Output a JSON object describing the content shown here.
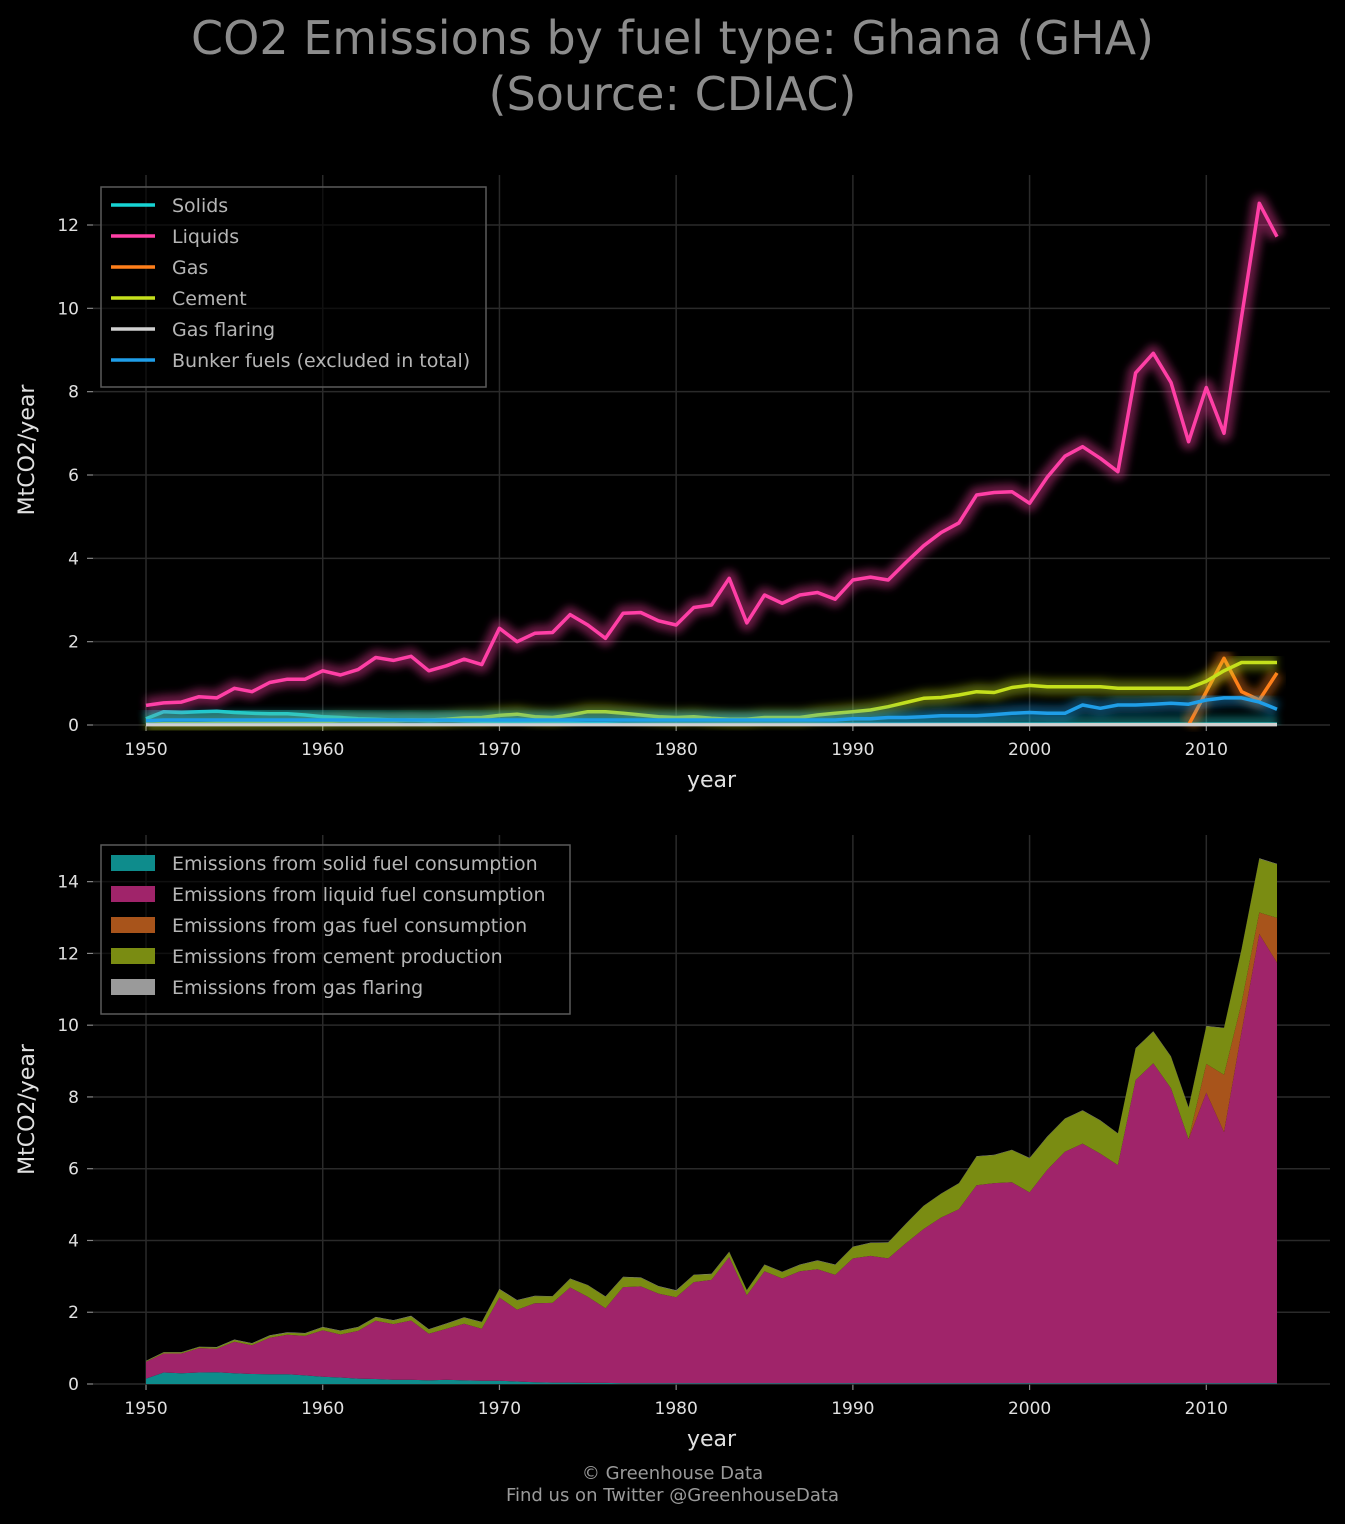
{
  "title_line1": "CO2 Emissions by fuel type: Ghana (GHA)",
  "title_line2": "(Source: CDIAC)",
  "footer_line1": "© Greenhouse Data",
  "footer_line2": "Find us on Twitter @GreenhouseData",
  "colors": {
    "background": "#000000",
    "grid": "#2a2a2a",
    "solids": "#17d4d4",
    "liquids": "#ff3fa6",
    "gas": "#ff7f1a",
    "cement": "#c5e01c",
    "gas_flaring": "#d0d0d0",
    "bunker": "#1f9ee8",
    "area_solids": "#0e8c8c",
    "area_liquids": "#a0246a",
    "area_gas": "#a8541b",
    "area_cement": "#7a8c12",
    "area_flaring": "#9a9a9a"
  },
  "chart_data": [
    {
      "type": "line",
      "xlabel": "year",
      "ylabel": "MtCO2/year",
      "xlim": [
        1947,
        2017
      ],
      "ylim": [
        0,
        13.2
      ],
      "xticks": [
        1950,
        1960,
        1970,
        1980,
        1990,
        2000,
        2010
      ],
      "yticks": [
        0,
        2,
        4,
        6,
        8,
        10,
        12
      ],
      "grid": true,
      "legend_position": "top-left",
      "series": [
        {
          "name": "Solids",
          "color_key": "solids",
          "x_start": 1950,
          "values": [
            0.15,
            0.32,
            0.3,
            0.32,
            0.33,
            0.3,
            0.28,
            0.27,
            0.27,
            0.24,
            0.2,
            0.18,
            0.15,
            0.14,
            0.12,
            0.12,
            0.1,
            0.12,
            0.1,
            0.09,
            0.09,
            0.07,
            0.05,
            0.04,
            0.04,
            0.03,
            0.03,
            0.02,
            0.02,
            0.02,
            0.02,
            0.02,
            0.02,
            0.02,
            0.02,
            0.02,
            0.02,
            0.02,
            0.02,
            0.02,
            0.02,
            0.02,
            0.02,
            0.02,
            0.02,
            0.02,
            0.02,
            0.02,
            0.02,
            0.02,
            0.02,
            0.02,
            0.02,
            0.02,
            0.02,
            0.02,
            0.02,
            0.02,
            0.02,
            0.02,
            0.02,
            0.02,
            0.02,
            0.02,
            0.02
          ]
        },
        {
          "name": "Liquids",
          "color_key": "liquids",
          "x_start": 1950,
          "values": [
            0.47,
            0.53,
            0.55,
            0.68,
            0.65,
            0.88,
            0.8,
            1.02,
            1.1,
            1.1,
            1.3,
            1.2,
            1.33,
            1.62,
            1.55,
            1.65,
            1.3,
            1.42,
            1.58,
            1.45,
            2.32,
            2.0,
            2.2,
            2.22,
            2.65,
            2.4,
            2.08,
            2.68,
            2.7,
            2.5,
            2.4,
            2.82,
            2.88,
            3.52,
            2.45,
            3.12,
            2.92,
            3.12,
            3.18,
            3.02,
            3.48,
            3.55,
            3.48,
            3.9,
            4.3,
            4.62,
            4.85,
            5.52,
            5.58,
            5.6,
            5.32,
            5.95,
            6.45,
            6.68,
            6.4,
            6.08,
            8.45,
            8.92,
            8.22,
            6.8,
            8.1,
            7.0,
            9.8,
            12.52,
            11.72
          ]
        },
        {
          "name": "Gas",
          "color_key": "gas",
          "x_start": 2009,
          "values": [
            0.0,
            0.8,
            1.6,
            0.8,
            0.6,
            1.25
          ]
        },
        {
          "name": "Cement",
          "color_key": "cement",
          "x_start": 1950,
          "values": [
            0.02,
            0.03,
            0.03,
            0.03,
            0.04,
            0.05,
            0.05,
            0.06,
            0.06,
            0.07,
            0.08,
            0.1,
            0.1,
            0.1,
            0.1,
            0.12,
            0.12,
            0.14,
            0.17,
            0.18,
            0.23,
            0.26,
            0.2,
            0.18,
            0.24,
            0.32,
            0.32,
            0.28,
            0.24,
            0.2,
            0.18,
            0.2,
            0.16,
            0.14,
            0.14,
            0.18,
            0.18,
            0.18,
            0.24,
            0.28,
            0.32,
            0.36,
            0.44,
            0.54,
            0.64,
            0.66,
            0.72,
            0.8,
            0.78,
            0.9,
            0.95,
            0.92,
            0.92,
            0.92,
            0.92,
            0.88,
            0.88,
            0.88,
            0.88,
            0.88,
            1.05,
            1.3,
            1.5,
            1.5,
            1.5
          ]
        },
        {
          "name": "Gas flaring",
          "color_key": "gas_flaring",
          "x_start": 1950,
          "values": [
            0.01,
            0.01,
            0.01,
            0.01,
            0.01,
            0.01,
            0.01,
            0.01,
            0.01,
            0.01,
            0.01,
            0.01,
            0.01,
            0.01,
            0.01,
            0.01,
            0.01,
            0.01,
            0.01,
            0.01,
            0.01,
            0.01,
            0.01,
            0.01,
            0.01,
            0.01,
            0.01,
            0.01,
            0.01,
            0.01,
            0.01,
            0.01,
            0.01,
            0.01,
            0.01,
            0.01,
            0.01,
            0.01,
            0.01,
            0.01,
            0.01,
            0.01,
            0.01,
            0.01,
            0.01,
            0.01,
            0.01,
            0.01,
            0.01,
            0.01,
            0.01,
            0.01,
            0.01,
            0.01,
            0.01,
            0.01,
            0.01,
            0.01,
            0.01,
            0.01,
            0.01,
            0.01,
            0.01,
            0.01,
            0.01
          ]
        },
        {
          "name": "Bunker fuels (excluded in total)",
          "color_key": "bunker",
          "x_start": 1950,
          "values": [
            0.1,
            0.12,
            0.12,
            0.12,
            0.12,
            0.12,
            0.12,
            0.12,
            0.12,
            0.12,
            0.12,
            0.12,
            0.12,
            0.12,
            0.12,
            0.12,
            0.12,
            0.12,
            0.12,
            0.12,
            0.12,
            0.12,
            0.12,
            0.12,
            0.12,
            0.12,
            0.12,
            0.12,
            0.12,
            0.12,
            0.12,
            0.12,
            0.12,
            0.12,
            0.12,
            0.12,
            0.12,
            0.12,
            0.12,
            0.12,
            0.15,
            0.15,
            0.18,
            0.18,
            0.2,
            0.22,
            0.22,
            0.22,
            0.25,
            0.28,
            0.3,
            0.28,
            0.28,
            0.48,
            0.4,
            0.48,
            0.48,
            0.5,
            0.52,
            0.5,
            0.6,
            0.65,
            0.65,
            0.55,
            0.38
          ]
        }
      ]
    },
    {
      "type": "area",
      "stacked": true,
      "xlabel": "year",
      "ylabel": "MtCO2/year",
      "xlim": [
        1947,
        2017
      ],
      "ylim": [
        0,
        15.3
      ],
      "xticks": [
        1950,
        1960,
        1970,
        1980,
        1990,
        2000,
        2010
      ],
      "yticks": [
        0,
        2,
        4,
        6,
        8,
        10,
        12,
        14
      ],
      "grid": true,
      "legend_position": "top-left",
      "series": [
        {
          "name": "Emissions from solid fuel consumption",
          "color_key": "area_solids",
          "ref": 0
        },
        {
          "name": "Emissions from liquid fuel consumption",
          "color_key": "area_liquids",
          "ref": 1
        },
        {
          "name": "Emissions from gas fuel consumption",
          "color_key": "area_gas",
          "ref": 2
        },
        {
          "name": "Emissions from cement production",
          "color_key": "area_cement",
          "ref": 3
        },
        {
          "name": "Emissions from gas flaring",
          "color_key": "area_flaring",
          "ref": 4
        }
      ]
    }
  ]
}
